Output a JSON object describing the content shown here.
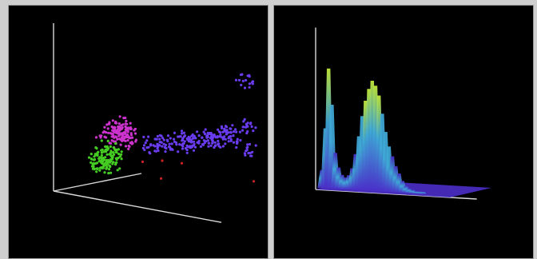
{
  "chart_data": [
    {
      "type": "scatter",
      "title": "",
      "grid": false,
      "series": [
        {
          "color": "#cc33cc",
          "values": [
            [
              -0.45,
              0.55,
              0.6
            ],
            [
              -0.4,
              0.6,
              0.55
            ],
            [
              -0.35,
              0.62,
              0.5
            ],
            [
              -0.42,
              0.5,
              0.5
            ],
            [
              -0.3,
              0.58,
              0.45
            ],
            [
              -0.38,
              0.65,
              0.58
            ],
            [
              -0.47,
              0.45,
              0.62
            ],
            [
              -0.33,
              0.52,
              0.52
            ],
            [
              -0.28,
              0.6,
              0.48
            ],
            [
              -0.44,
              0.6,
              0.44
            ]
          ]
        },
        {
          "color": "#44cc22",
          "values": [
            [
              -0.55,
              0.25,
              0.6
            ],
            [
              -0.5,
              0.3,
              0.62
            ],
            [
              -0.58,
              0.2,
              0.55
            ],
            [
              -0.52,
              0.22,
              0.5
            ],
            [
              -0.48,
              0.28,
              0.58
            ],
            [
              -0.56,
              0.32,
              0.64
            ],
            [
              -0.6,
              0.18,
              0.6
            ],
            [
              -0.5,
              0.18,
              0.52
            ],
            [
              -0.54,
              0.28,
              0.48
            ],
            [
              -0.46,
              0.24,
              0.56
            ]
          ]
        },
        {
          "color": "#6a3cf0",
          "values": [
            [
              0.1,
              0.6,
              0.5
            ],
            [
              0.2,
              0.65,
              0.5
            ],
            [
              0.3,
              0.7,
              0.48
            ],
            [
              0.4,
              0.72,
              0.5
            ],
            [
              0.5,
              0.75,
              0.52
            ],
            [
              0.0,
              0.55,
              0.5
            ],
            [
              -0.1,
              0.52,
              0.48
            ],
            [
              0.25,
              0.62,
              0.45
            ],
            [
              0.35,
              0.68,
              0.55
            ],
            [
              0.45,
              0.7,
              0.46
            ],
            [
              0.55,
              0.78,
              0.5
            ],
            [
              0.15,
              0.58,
              0.55
            ],
            [
              0.05,
              0.6,
              0.42
            ],
            [
              0.6,
              0.8,
              0.48
            ],
            [
              0.65,
              0.65,
              0.55
            ],
            [
              0.7,
              0.9,
              0.5
            ],
            [
              0.9,
              1.5,
              0.2
            ]
          ]
        },
        {
          "color": "#cc2222",
          "values": [
            [
              -0.1,
              0.35,
              0.4
            ],
            [
              0.1,
              0.42,
              0.35
            ],
            [
              0.3,
              0.45,
              0.3
            ],
            [
              0.9,
              0.4,
              0.3
            ],
            [
              0.2,
              0.28,
              0.2
            ]
          ]
        }
      ]
    },
    {
      "type": "area",
      "title": "",
      "grid": false,
      "x": [
        0,
        2,
        4,
        6,
        8,
        10,
        12,
        14,
        16,
        18,
        20,
        22,
        24,
        26,
        28,
        30,
        32,
        34,
        36,
        38,
        40,
        42,
        44,
        46,
        48,
        50,
        52,
        54,
        56,
        58,
        60,
        62,
        64,
        66,
        68,
        70,
        72,
        74,
        76,
        78,
        80
      ],
      "values": [
        0.15,
        0.5,
        1.0,
        0.7,
        0.3,
        0.18,
        0.12,
        0.1,
        0.12,
        0.18,
        0.3,
        0.45,
        0.62,
        0.75,
        0.85,
        0.92,
        0.88,
        0.8,
        0.65,
        0.5,
        0.38,
        0.3,
        0.22,
        0.16,
        0.1,
        0.06,
        0.04,
        0.03,
        0.02,
        0.02,
        0.02,
        0.01,
        0.01,
        0.01,
        0.01,
        0.01,
        0.01,
        0.01,
        0.01,
        0.01,
        0.0
      ],
      "colors": {
        "low": "#4a2ec8",
        "mid": "#3fa9d8",
        "high": "#c8f03a"
      }
    }
  ]
}
